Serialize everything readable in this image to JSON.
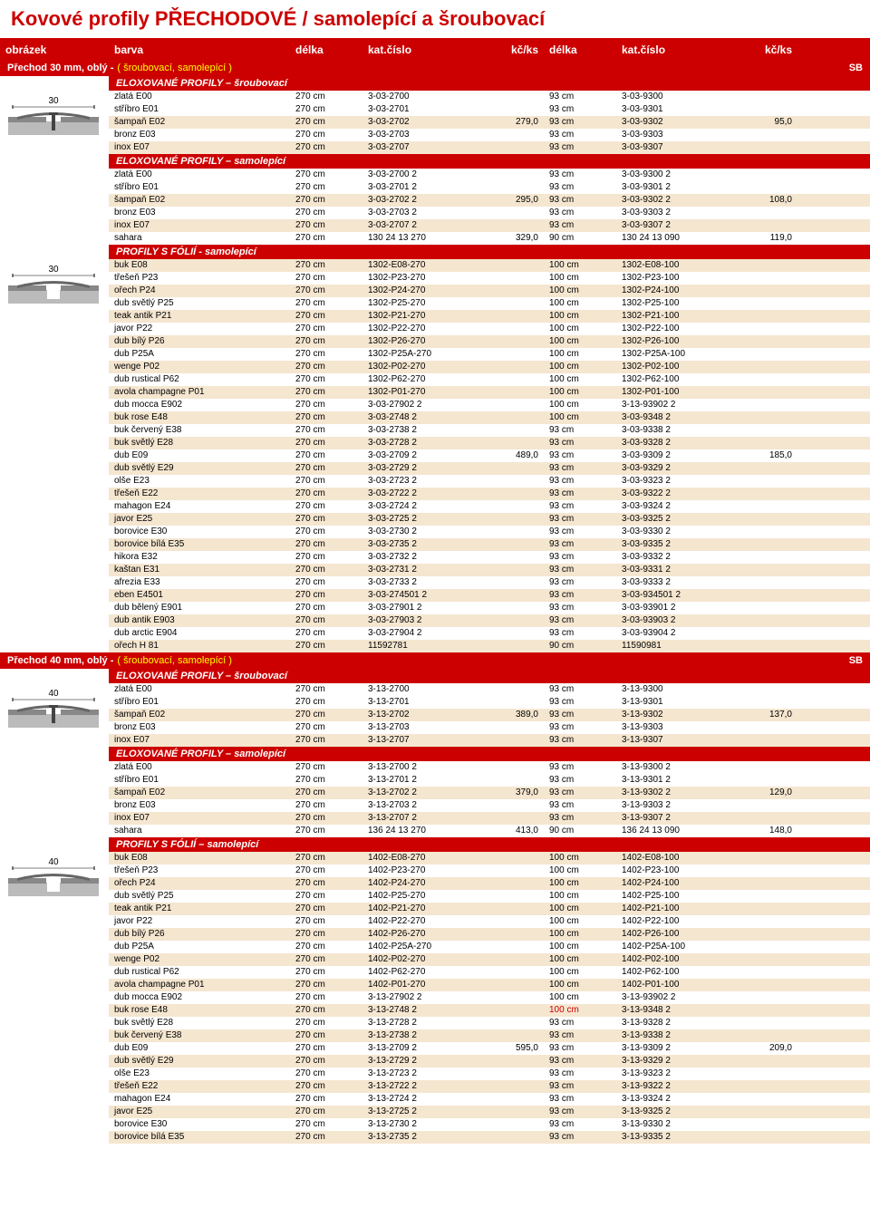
{
  "title": "Kovové profily PŘECHODOVÉ / samolepící a šroubovací",
  "headers": [
    "obrázek",
    "barva",
    "délka",
    "kat.číslo",
    "kč/ks",
    "délka",
    "kat.číslo",
    "kč/ks"
  ],
  "sections": [
    {
      "title": "Přechod 30 mm, oblý -",
      "subtitle": "( šroubovací, samolepící )",
      "sb": "SB",
      "img_label": "30",
      "groups": [
        {
          "header": "ELOXOVANÉ PROFILY – šroubovací",
          "price1": "279,0",
          "price2": "95,0",
          "img": true,
          "rows": [
            {
              "a": "zlatá E00",
              "b": "270 cm",
              "c": "3-03-2700",
              "d": "93 cm",
              "e": "3-03-9300",
              "alt": 0
            },
            {
              "a": "stříbro E01",
              "b": "270 cm",
              "c": "3-03-2701",
              "d": "93 cm",
              "e": "3-03-9301",
              "alt": 0
            },
            {
              "a": "šampaň E02",
              "b": "270 cm",
              "c": "3-03-2702",
              "d": "93 cm",
              "e": "3-03-9302",
              "alt": 1,
              "showp": 1
            },
            {
              "a": "bronz E03",
              "b": "270 cm",
              "c": "3-03-2703",
              "d": "93 cm",
              "e": "3-03-9303",
              "alt": 0
            },
            {
              "a": "inox E07",
              "b": "270 cm",
              "c": "3-03-2707",
              "d": "93 cm",
              "e": "3-03-9307",
              "alt": 1
            }
          ]
        },
        {
          "header": "ELOXOVANÉ PROFILY – samolepící",
          "price1": "295,0",
          "price2": "108,0",
          "rows": [
            {
              "a": "zlatá E00",
              "b": "270 cm",
              "c": "3-03-2700 2",
              "d": "93 cm",
              "e": "3-03-9300 2",
              "alt": 0
            },
            {
              "a": "stříbro E01",
              "b": "270 cm",
              "c": "3-03-2701 2",
              "d": "93 cm",
              "e": "3-03-9301 2",
              "alt": 0
            },
            {
              "a": "šampaň E02",
              "b": "270 cm",
              "c": "3-03-2702 2",
              "d": "93 cm",
              "e": "3-03-9302 2",
              "alt": 1,
              "showp": 1
            },
            {
              "a": "bronz E03",
              "b": "270 cm",
              "c": "3-03-2703 2",
              "d": "93 cm",
              "e": "3-03-9303 2",
              "alt": 0
            },
            {
              "a": "inox E07",
              "b": "270 cm",
              "c": "3-03-2707 2",
              "d": "93 cm",
              "e": "3-03-9307 2",
              "alt": 1
            },
            {
              "a": "sahara",
              "b": "270 cm",
              "c": "130 24 13 270",
              "p1": "329,0",
              "d": "90 cm",
              "e": "130 24 13 090",
              "p2": "119,0",
              "alt": 0
            }
          ]
        },
        {
          "header": "PROFILY S FÓLIÍ - samolepící",
          "price1": "489,0",
          "price2": "185,0",
          "img2": true,
          "rows": [
            {
              "a": "buk E08",
              "b": "270 cm",
              "c": "1302-E08-270",
              "d": "100 cm",
              "e": "1302-E08-100",
              "alt": 1
            },
            {
              "a": "třešeň P23",
              "b": "270 cm",
              "c": "1302-P23-270",
              "d": "100 cm",
              "e": "1302-P23-100",
              "alt": 0
            },
            {
              "a": "ořech P24",
              "b": "270 cm",
              "c": "1302-P24-270",
              "d": "100 cm",
              "e": "1302-P24-100",
              "alt": 1
            },
            {
              "a": "dub světlý P25",
              "b": "270 cm",
              "c": "1302-P25-270",
              "d": "100 cm",
              "e": "1302-P25-100",
              "alt": 0
            },
            {
              "a": "teak antik P21",
              "b": "270 cm",
              "c": "1302-P21-270",
              "d": "100 cm",
              "e": "1302-P21-100",
              "alt": 1
            },
            {
              "a": "javor P22",
              "b": "270 cm",
              "c": "1302-P22-270",
              "d": "100 cm",
              "e": "1302-P22-100",
              "alt": 0
            },
            {
              "a": "dub bílý P26",
              "b": "270 cm",
              "c": "1302-P26-270",
              "d": "100 cm",
              "e": "1302-P26-100",
              "alt": 1
            },
            {
              "a": "dub P25A",
              "b": "270 cm",
              "c": "1302-P25A-270",
              "d": "100 cm",
              "e": "1302-P25A-100",
              "alt": 0
            },
            {
              "a": "wenge P02",
              "b": "270 cm",
              "c": "1302-P02-270",
              "d": "100 cm",
              "e": "1302-P02-100",
              "alt": 1
            },
            {
              "a": "dub rustical P62",
              "b": "270 cm",
              "c": "1302-P62-270",
              "d": "100 cm",
              "e": "1302-P62-100",
              "alt": 0
            },
            {
              "a": "avola champagne P01",
              "b": "270 cm",
              "c": "1302-P01-270",
              "d": "100 cm",
              "e": "1302-P01-100",
              "alt": 1
            },
            {
              "a": "dub mocca E902",
              "b": "270 cm",
              "c": "3-03-27902 2",
              "d": "100 cm",
              "e": "3-13-93902 2",
              "alt": 0
            },
            {
              "a": "buk rose E48",
              "b": "270 cm",
              "c": "3-03-2748 2",
              "d": "100 cm",
              "e": "3-03-9348 2",
              "alt": 1
            },
            {
              "a": "buk červený E38",
              "b": "270 cm",
              "c": "3-03-2738 2",
              "d": "93 cm",
              "e": "3-03-9338 2",
              "alt": 0
            },
            {
              "a": "buk světlý E28",
              "b": "270 cm",
              "c": "3-03-2728 2",
              "d": "93 cm",
              "e": "3-03-9328 2",
              "alt": 1
            },
            {
              "a": "dub E09",
              "b": "270 cm",
              "c": "3-03-2709 2",
              "d": "93 cm",
              "e": "3-03-9309 2",
              "alt": 0,
              "showp": 1
            },
            {
              "a": "dub světlý E29",
              "b": "270 cm",
              "c": "3-03-2729 2",
              "d": "93 cm",
              "e": "3-03-9329 2",
              "alt": 1
            },
            {
              "a": "olše E23",
              "b": "270 cm",
              "c": "3-03-2723 2",
              "d": "93 cm",
              "e": "3-03-9323 2",
              "alt": 0
            },
            {
              "a": "třešeň E22",
              "b": "270 cm",
              "c": "3-03-2722 2",
              "d": "93 cm",
              "e": "3-03-9322 2",
              "alt": 1
            },
            {
              "a": "mahagon E24",
              "b": "270 cm",
              "c": "3-03-2724 2",
              "d": "93 cm",
              "e": "3-03-9324 2",
              "alt": 0
            },
            {
              "a": "javor E25",
              "b": "270 cm",
              "c": "3-03-2725 2",
              "d": "93 cm",
              "e": "3-03-9325 2",
              "alt": 1
            },
            {
              "a": "borovice E30",
              "b": "270 cm",
              "c": "3-03-2730 2",
              "d": "93 cm",
              "e": "3-03-9330 2",
              "alt": 0
            },
            {
              "a": "borovice bílá E35",
              "b": "270 cm",
              "c": "3-03-2735 2",
              "d": "93 cm",
              "e": "3-03-9335 2",
              "alt": 1
            },
            {
              "a": "hikora E32",
              "b": "270 cm",
              "c": "3-03-2732 2",
              "d": "93 cm",
              "e": "3-03-9332 2",
              "alt": 0
            },
            {
              "a": "kaštan E31",
              "b": "270 cm",
              "c": "3-03-2731 2",
              "d": "93 cm",
              "e": "3-03-9331 2",
              "alt": 1
            },
            {
              "a": "afrezia E33",
              "b": "270 cm",
              "c": "3-03-2733 2",
              "d": "93 cm",
              "e": "3-03-9333 2",
              "alt": 0
            },
            {
              "a": "eben E4501",
              "b": "270 cm",
              "c": "3-03-274501 2",
              "d": "93 cm",
              "e": "3-03-934501 2",
              "alt": 1
            },
            {
              "a": "dub bělený E901",
              "b": "270 cm",
              "c": "3-03-27901 2",
              "d": "93 cm",
              "e": "3-03-93901 2",
              "alt": 0
            },
            {
              "a": "dub antik E903",
              "b": "270 cm",
              "c": "3-03-27903 2",
              "d": "93 cm",
              "e": "3-03-93903 2",
              "alt": 1
            },
            {
              "a": "dub arctic E904",
              "b": "270 cm",
              "c": "3-03-27904 2",
              "d": "93 cm",
              "e": "3-03-93904 2",
              "alt": 0
            },
            {
              "a": "ořech H 81",
              "b": "270 cm",
              "c": "11592781",
              "d": "90 cm",
              "e": "11590981",
              "alt": 1
            }
          ]
        }
      ]
    },
    {
      "title": "Přechod 40 mm, oblý -",
      "subtitle": "( šroubovací, samolepící )",
      "sb": "SB",
      "img_label": "40",
      "groups": [
        {
          "header": "ELOXOVANÉ PROFILY – šroubovací",
          "price1": "389,0",
          "price2": "137,0",
          "img": true,
          "rows": [
            {
              "a": "zlatá E00",
              "b": "270 cm",
              "c": "3-13-2700",
              "d": "93 cm",
              "e": "3-13-9300",
              "alt": 0
            },
            {
              "a": "stříbro E01",
              "b": "270 cm",
              "c": "3-13-2701",
              "d": "93 cm",
              "e": "3-13-9301",
              "alt": 0
            },
            {
              "a": "šampaň E02",
              "b": "270 cm",
              "c": "3-13-2702",
              "d": "93 cm",
              "e": "3-13-9302",
              "alt": 1,
              "showp": 1
            },
            {
              "a": "bronz E03",
              "b": "270 cm",
              "c": "3-13-2703",
              "d": "93 cm",
              "e": "3-13-9303",
              "alt": 0
            },
            {
              "a": "inox E07",
              "b": "270 cm",
              "c": "3-13-2707",
              "d": "93 cm",
              "e": "3-13-9307",
              "alt": 1
            }
          ]
        },
        {
          "header": "ELOXOVANÉ PROFILY – samolepící",
          "price1": "379,0",
          "price2": "129,0",
          "rows": [
            {
              "a": "zlatá E00",
              "b": "270 cm",
              "c": "3-13-2700 2",
              "d": "93 cm",
              "e": "3-13-9300 2",
              "alt": 0
            },
            {
              "a": "stříbro E01",
              "b": "270 cm",
              "c": "3-13-2701 2",
              "d": "93 cm",
              "e": "3-13-9301 2",
              "alt": 0
            },
            {
              "a": "šampaň E02",
              "b": "270 cm",
              "c": "3-13-2702 2",
              "d": "93 cm",
              "e": "3-13-9302 2",
              "alt": 1,
              "showp": 1
            },
            {
              "a": "bronz E03",
              "b": "270 cm",
              "c": "3-13-2703 2",
              "d": "93 cm",
              "e": "3-13-9303 2",
              "alt": 0
            },
            {
              "a": "inox E07",
              "b": "270 cm",
              "c": "3-13-2707 2",
              "d": "93 cm",
              "e": "3-13-9307 2",
              "alt": 1
            },
            {
              "a": "sahara",
              "b": "270 cm",
              "c": "136 24 13 270",
              "p1": "413,0",
              "d": "90 cm",
              "e": "136 24 13 090",
              "p2": "148,0",
              "alt": 0
            }
          ]
        },
        {
          "header": "PROFILY S FÓLIÍ – samolepící",
          "price1": "595,0",
          "price2": "209,0",
          "img2": true,
          "rows": [
            {
              "a": "buk E08",
              "b": "270 cm",
              "c": "1402-E08-270",
              "d": "100 cm",
              "e": "1402-E08-100",
              "alt": 1
            },
            {
              "a": "třešeň P23",
              "b": "270 cm",
              "c": "1402-P23-270",
              "d": "100 cm",
              "e": "1402-P23-100",
              "alt": 0
            },
            {
              "a": "ořech P24",
              "b": "270 cm",
              "c": "1402-P24-270",
              "d": "100 cm",
              "e": "1402-P24-100",
              "alt": 1
            },
            {
              "a": "dub světlý P25",
              "b": "270 cm",
              "c": "1402-P25-270",
              "d": "100 cm",
              "e": "1402-P25-100",
              "alt": 0
            },
            {
              "a": "teak antik P21",
              "b": "270 cm",
              "c": "1402-P21-270",
              "d": "100 cm",
              "e": "1402-P21-100",
              "alt": 1
            },
            {
              "a": "javor P22",
              "b": "270 cm",
              "c": "1402-P22-270",
              "d": "100 cm",
              "e": "1402-P22-100",
              "alt": 0
            },
            {
              "a": "dub bílý P26",
              "b": "270 cm",
              "c": "1402-P26-270",
              "d": "100 cm",
              "e": "1402-P26-100",
              "alt": 1
            },
            {
              "a": "dub P25A",
              "b": "270 cm",
              "c": "1402-P25A-270",
              "d": "100 cm",
              "e": "1402-P25A-100",
              "alt": 0
            },
            {
              "a": "wenge P02",
              "b": "270 cm",
              "c": "1402-P02-270",
              "d": "100 cm",
              "e": "1402-P02-100",
              "alt": 1
            },
            {
              "a": "dub rustical P62",
              "b": "270 cm",
              "c": "1402-P62-270",
              "d": "100 cm",
              "e": "1402-P62-100",
              "alt": 0
            },
            {
              "a": "avola champagne P01",
              "b": "270 cm",
              "c": "1402-P01-270",
              "d": "100 cm",
              "e": "1402-P01-100",
              "alt": 1
            },
            {
              "a": "dub mocca E902",
              "b": "270 cm",
              "c": "3-13-27902 2",
              "d": "100 cm",
              "e": "3-13-93902 2",
              "alt": 0
            },
            {
              "a": "buk rose E48",
              "b": "270 cm",
              "c": "3-13-2748 2",
              "d": "100 cm",
              "e": "3-13-9348 2",
              "alt": 1,
              "dred": 1
            },
            {
              "a": "buk světlý E28",
              "b": "270 cm",
              "c": "3-13-2728 2",
              "d": "93 cm",
              "e": "3-13-9328 2",
              "alt": 0
            },
            {
              "a": "buk červený E38",
              "b": "270 cm",
              "c": "3-13-2738 2",
              "d": "93 cm",
              "e": "3-13-9338 2",
              "alt": 1
            },
            {
              "a": "dub E09",
              "b": "270 cm",
              "c": "3-13-2709 2",
              "d": "93 cm",
              "e": "3-13-9309 2",
              "alt": 0,
              "showp": 1
            },
            {
              "a": "dub světlý E29",
              "b": "270 cm",
              "c": "3-13-2729 2",
              "d": "93 cm",
              "e": "3-13-9329 2",
              "alt": 1
            },
            {
              "a": "olše E23",
              "b": "270 cm",
              "c": "3-13-2723 2",
              "d": "93 cm",
              "e": "3-13-9323 2",
              "alt": 0
            },
            {
              "a": "třešeň E22",
              "b": "270 cm",
              "c": "3-13-2722 2",
              "d": "93 cm",
              "e": "3-13-9322 2",
              "alt": 1
            },
            {
              "a": "mahagon E24",
              "b": "270 cm",
              "c": "3-13-2724 2",
              "d": "93 cm",
              "e": "3-13-9324 2",
              "alt": 0
            },
            {
              "a": "javor E25",
              "b": "270 cm",
              "c": "3-13-2725 2",
              "d": "93 cm",
              "e": "3-13-9325 2",
              "alt": 1
            },
            {
              "a": "borovice E30",
              "b": "270 cm",
              "c": "3-13-2730 2",
              "d": "93 cm",
              "e": "3-13-9330 2",
              "alt": 0
            },
            {
              "a": "borovice bílá E35",
              "b": "270 cm",
              "c": "3-13-2735 2",
              "d": "93 cm",
              "e": "3-13-9335 2",
              "alt": 1
            }
          ]
        }
      ]
    }
  ]
}
